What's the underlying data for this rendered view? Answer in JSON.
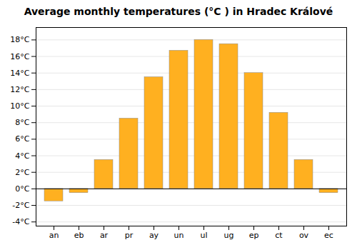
{
  "chart_data": {
    "type": "bar",
    "title": "Average monthly temperatures (°C ) in Hradec Králové",
    "categories": [
      "an",
      "eb",
      "ar",
      "pr",
      "ay",
      "un",
      "ul",
      "ug",
      "ep",
      "ct",
      "ov",
      "ec"
    ],
    "values": [
      -1.5,
      -0.5,
      3.5,
      8.5,
      13.5,
      16.7,
      18.0,
      17.5,
      14.0,
      9.2,
      3.5,
      -0.5
    ],
    "color": "#FFB020",
    "ylim": [
      -4.5,
      19.5
    ],
    "yticks": [
      {
        "value": -4,
        "label": "-4°C"
      },
      {
        "value": -2,
        "label": "-2°C"
      },
      {
        "value": 0,
        "label": "0°C"
      },
      {
        "value": 2,
        "label": "2°C"
      },
      {
        "value": 4,
        "label": "4°C"
      },
      {
        "value": 6,
        "label": "6°C"
      },
      {
        "value": 8,
        "label": "8°C"
      },
      {
        "value": 10,
        "label": "10°C"
      },
      {
        "value": 12,
        "label": "12°C"
      },
      {
        "value": 14,
        "label": "14°C"
      },
      {
        "value": 16,
        "label": "16°C"
      },
      {
        "value": 18,
        "label": "18°C"
      }
    ],
    "grid": true
  }
}
